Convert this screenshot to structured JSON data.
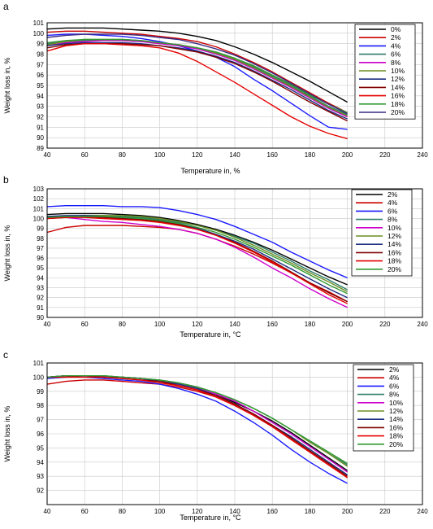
{
  "chart_data": [
    {
      "panel": "a",
      "type": "line",
      "xlabel": "Temperature in, %",
      "ylabel": "Weight loss in, %",
      "xlim": [
        40,
        240
      ],
      "ylim": [
        89,
        101
      ],
      "xticks": [
        40,
        60,
        80,
        100,
        120,
        140,
        160,
        180,
        200,
        220,
        240
      ],
      "yticks": [
        89,
        90,
        91,
        92,
        93,
        94,
        95,
        96,
        97,
        98,
        99,
        100,
        101
      ],
      "grid": true,
      "legend_position": "top-right",
      "x": [
        40,
        50,
        60,
        70,
        80,
        90,
        100,
        110,
        120,
        130,
        140,
        150,
        160,
        170,
        180,
        190,
        200
      ],
      "series": [
        {
          "name": "0%",
          "color": "#000000",
          "values": [
            100.4,
            100.5,
            100.5,
            100.5,
            100.4,
            100.3,
            100.2,
            100.0,
            99.7,
            99.3,
            98.7,
            98.0,
            97.2,
            96.3,
            95.4,
            94.4,
            93.4
          ]
        },
        {
          "name": "2%",
          "color": "#cc0000",
          "values": [
            100.1,
            100.2,
            100.2,
            100.1,
            100.0,
            99.9,
            99.7,
            99.5,
            99.2,
            98.7,
            98.0,
            97.2,
            96.3,
            95.3,
            94.3,
            93.3,
            92.4
          ]
        },
        {
          "name": "4%",
          "color": "#1a1aff",
          "values": [
            99.8,
            99.9,
            99.9,
            99.8,
            99.7,
            99.5,
            99.2,
            98.8,
            98.3,
            97.7,
            96.8,
            95.6,
            94.5,
            93.3,
            92.1,
            91.0,
            90.8
          ]
        },
        {
          "name": "6%",
          "color": "#2e7d6b",
          "values": [
            99.0,
            99.2,
            99.3,
            99.3,
            99.3,
            99.2,
            99.1,
            98.9,
            98.6,
            98.2,
            97.6,
            96.8,
            95.9,
            95.0,
            94.0,
            93.0,
            92.2
          ]
        },
        {
          "name": "8%",
          "color": "#cc00cc",
          "values": [
            98.8,
            99.1,
            99.2,
            99.3,
            99.3,
            99.2,
            99.0,
            98.8,
            98.5,
            98.0,
            97.4,
            96.6,
            95.7,
            94.8,
            93.8,
            92.8,
            92.0
          ]
        },
        {
          "name": "10%",
          "color": "#6b8e23",
          "values": [
            98.9,
            99.2,
            99.4,
            99.4,
            99.4,
            99.3,
            99.1,
            98.9,
            98.6,
            98.1,
            97.5,
            96.7,
            95.8,
            94.9,
            93.9,
            92.9,
            92.1
          ]
        },
        {
          "name": "12%",
          "color": "#1c2e80",
          "values": [
            98.8,
            99.0,
            99.1,
            99.1,
            99.1,
            99.0,
            98.8,
            98.6,
            98.3,
            97.8,
            97.2,
            96.4,
            95.5,
            94.6,
            93.6,
            92.6,
            91.8
          ]
        },
        {
          "name": "14%",
          "color": "#800000",
          "values": [
            98.6,
            98.9,
            99.0,
            99.0,
            99.0,
            98.9,
            98.8,
            98.5,
            98.2,
            97.7,
            97.1,
            96.3,
            95.4,
            94.4,
            93.4,
            92.5,
            91.6
          ]
        },
        {
          "name": "16%",
          "color": "#e60000",
          "values": [
            98.3,
            98.8,
            99.0,
            99.0,
            98.9,
            98.8,
            98.6,
            98.1,
            97.3,
            96.3,
            95.3,
            94.2,
            93.1,
            92.0,
            91.1,
            90.4,
            89.9
          ]
        },
        {
          "name": "18%",
          "color": "#339933",
          "values": [
            99.1,
            99.3,
            99.4,
            99.4,
            99.4,
            99.3,
            99.1,
            98.9,
            98.6,
            98.2,
            97.6,
            96.9,
            96.0,
            95.1,
            94.1,
            93.2,
            92.4
          ]
        },
        {
          "name": "20%",
          "color": "#3a2a80",
          "values": [
            99.6,
            99.8,
            99.9,
            99.9,
            99.9,
            99.8,
            99.6,
            99.4,
            99.0,
            98.5,
            97.9,
            97.1,
            96.2,
            95.2,
            94.2,
            93.2,
            92.3
          ]
        }
      ]
    },
    {
      "panel": "b",
      "type": "line",
      "xlabel": "Temperature in, °C",
      "ylabel": "Weight loss in, %",
      "xlim": [
        40,
        240
      ],
      "ylim": [
        90,
        103
      ],
      "xticks": [
        40,
        60,
        80,
        100,
        120,
        140,
        160,
        180,
        200,
        220,
        240
      ],
      "yticks": [
        90,
        91,
        92,
        93,
        94,
        95,
        96,
        97,
        98,
        99,
        100,
        101,
        102,
        103
      ],
      "grid": true,
      "legend_position": "top-right",
      "x": [
        40,
        50,
        60,
        70,
        80,
        90,
        100,
        110,
        120,
        130,
        140,
        150,
        160,
        170,
        180,
        190,
        200
      ],
      "series": [
        {
          "name": "2%",
          "color": "#000000",
          "values": [
            100.4,
            100.5,
            100.5,
            100.5,
            100.4,
            100.3,
            100.1,
            99.8,
            99.4,
            98.9,
            98.3,
            97.6,
            96.8,
            95.9,
            95.0,
            94.1,
            93.3
          ]
        },
        {
          "name": "4%",
          "color": "#cc0000",
          "values": [
            98.6,
            99.1,
            99.3,
            99.3,
            99.3,
            99.2,
            99.1,
            98.9,
            98.5,
            97.9,
            97.2,
            96.4,
            95.5,
            94.5,
            93.5,
            92.6,
            91.6
          ]
        },
        {
          "name": "6%",
          "color": "#1a1aff",
          "values": [
            101.2,
            101.3,
            101.3,
            101.3,
            101.2,
            101.2,
            101.1,
            100.8,
            100.4,
            99.9,
            99.2,
            98.4,
            97.6,
            96.6,
            95.7,
            94.8,
            94.0
          ]
        },
        {
          "name": "8%",
          "color": "#2e7d6b",
          "values": [
            100.0,
            100.2,
            100.3,
            100.3,
            100.2,
            100.1,
            99.9,
            99.6,
            99.3,
            98.8,
            98.2,
            97.5,
            96.6,
            95.7,
            94.7,
            93.8,
            92.8
          ]
        },
        {
          "name": "10%",
          "color": "#cc00cc",
          "values": [
            100.1,
            100.1,
            99.9,
            99.7,
            99.6,
            99.4,
            99.2,
            98.9,
            98.5,
            97.9,
            97.1,
            96.1,
            95.0,
            94.0,
            92.9,
            91.9,
            91.0
          ]
        },
        {
          "name": "12%",
          "color": "#6b8e23",
          "values": [
            100.1,
            100.2,
            100.3,
            100.3,
            100.3,
            100.2,
            100.0,
            99.7,
            99.3,
            98.8,
            98.1,
            97.3,
            96.4,
            95.5,
            94.5,
            93.6,
            92.6
          ]
        },
        {
          "name": "14%",
          "color": "#1c2e80",
          "values": [
            100.2,
            100.3,
            100.3,
            100.2,
            100.1,
            100.0,
            99.8,
            99.5,
            99.0,
            98.4,
            97.7,
            96.9,
            95.9,
            94.9,
            93.9,
            92.9,
            92.0
          ]
        },
        {
          "name": "16%",
          "color": "#800000",
          "values": [
            100.0,
            100.1,
            100.2,
            100.1,
            100.0,
            99.9,
            99.7,
            99.4,
            98.9,
            98.3,
            97.6,
            96.7,
            95.7,
            94.6,
            93.5,
            92.5,
            91.6
          ]
        },
        {
          "name": "18%",
          "color": "#e60000",
          "values": [
            100.0,
            100.1,
            100.1,
            100.0,
            99.9,
            99.8,
            99.6,
            99.3,
            98.9,
            98.3,
            97.5,
            96.6,
            95.6,
            94.5,
            93.4,
            92.3,
            91.4
          ]
        },
        {
          "name": "20%",
          "color": "#339933",
          "values": [
            100.1,
            100.2,
            100.2,
            100.2,
            100.1,
            100.0,
            99.8,
            99.5,
            99.1,
            98.6,
            97.9,
            97.1,
            96.2,
            95.3,
            94.3,
            93.3,
            92.4
          ]
        }
      ]
    },
    {
      "panel": "c",
      "type": "line",
      "xlabel": "Temperature in, °C",
      "ylabel": "Weight loss in, %",
      "xlim": [
        40,
        240
      ],
      "ylim": [
        91,
        101
      ],
      "xticks": [
        40,
        60,
        80,
        100,
        120,
        140,
        160,
        180,
        200,
        220,
        240
      ],
      "yticks": [
        92,
        93,
        94,
        95,
        96,
        97,
        98,
        99,
        100,
        101
      ],
      "grid": true,
      "legend_position": "top-right",
      "x": [
        40,
        50,
        60,
        70,
        80,
        90,
        100,
        110,
        120,
        130,
        140,
        150,
        160,
        170,
        180,
        190,
        200
      ],
      "series": [
        {
          "name": "2%",
          "color": "#000000",
          "values": [
            100.0,
            100.1,
            100.1,
            100.0,
            100.0,
            99.9,
            99.7,
            99.5,
            99.2,
            98.8,
            98.2,
            97.6,
            96.9,
            96.1,
            95.2,
            94.3,
            93.4
          ]
        },
        {
          "name": "4%",
          "color": "#cc0000",
          "values": [
            99.5,
            99.7,
            99.8,
            99.8,
            99.7,
            99.6,
            99.5,
            99.3,
            99.0,
            98.6,
            98.0,
            97.3,
            96.5,
            95.6,
            94.7,
            93.8,
            92.9
          ]
        },
        {
          "name": "6%",
          "color": "#1a1aff",
          "values": [
            99.9,
            100.0,
            100.0,
            99.9,
            99.8,
            99.7,
            99.5,
            99.2,
            98.8,
            98.3,
            97.6,
            96.8,
            95.9,
            94.9,
            94.0,
            93.2,
            92.5
          ]
        },
        {
          "name": "8%",
          "color": "#2e7d6b",
          "values": [
            100.0,
            100.1,
            100.1,
            100.1,
            100.0,
            99.9,
            99.8,
            99.6,
            99.3,
            98.9,
            98.4,
            97.8,
            97.1,
            96.3,
            95.5,
            94.7,
            93.8
          ]
        },
        {
          "name": "10%",
          "color": "#cc00cc",
          "values": [
            100.0,
            100.1,
            100.1,
            100.0,
            100.0,
            99.9,
            99.7,
            99.5,
            99.2,
            98.8,
            98.3,
            97.6,
            96.8,
            96.0,
            95.1,
            94.2,
            93.3
          ]
        },
        {
          "name": "12%",
          "color": "#6b8e23",
          "values": [
            100.0,
            100.1,
            100.1,
            100.1,
            100.0,
            99.9,
            99.8,
            99.6,
            99.3,
            98.9,
            98.4,
            97.8,
            97.1,
            96.3,
            95.4,
            94.6,
            93.7
          ]
        },
        {
          "name": "14%",
          "color": "#1c2e80",
          "values": [
            100.0,
            100.1,
            100.1,
            100.0,
            100.0,
            99.9,
            99.7,
            99.5,
            99.2,
            98.7,
            98.1,
            97.4,
            96.6,
            95.8,
            94.9,
            94.0,
            93.1
          ]
        },
        {
          "name": "16%",
          "color": "#800000",
          "values": [
            100.0,
            100.0,
            100.1,
            100.0,
            99.9,
            99.8,
            99.7,
            99.4,
            99.1,
            98.7,
            98.1,
            97.4,
            96.6,
            95.7,
            94.8,
            93.9,
            93.0
          ]
        },
        {
          "name": "18%",
          "color": "#e60000",
          "values": [
            100.0,
            100.0,
            100.0,
            100.0,
            99.9,
            99.8,
            99.6,
            99.4,
            99.1,
            98.6,
            98.0,
            97.3,
            96.5,
            95.6,
            94.7,
            93.8,
            92.9
          ]
        },
        {
          "name": "20%",
          "color": "#339933",
          "values": [
            100.0,
            100.1,
            100.1,
            100.1,
            100.0,
            99.9,
            99.8,
            99.6,
            99.3,
            98.9,
            98.4,
            97.8,
            97.1,
            96.3,
            95.5,
            94.7,
            93.9
          ]
        }
      ]
    }
  ]
}
